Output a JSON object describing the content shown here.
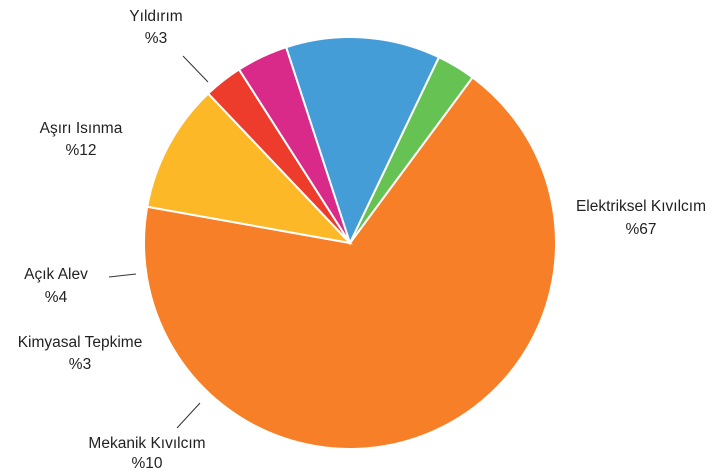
{
  "chart_data": {
    "type": "pie",
    "title": "",
    "slices": [
      {
        "label": "Elektriksel Kıvılcım",
        "value_label": "%67",
        "value": 67,
        "color": "#f77f27"
      },
      {
        "label": "Mekanik Kıvılcım",
        "value_label": "%10",
        "value": 10,
        "color": "#fcb827"
      },
      {
        "label": "Kimyasal Tepkime",
        "value_label": "%3",
        "value": 3,
        "color": "#ee3c2c"
      },
      {
        "label": "Açık Alev",
        "value_label": "%4",
        "value": 4,
        "color": "#d92a8a"
      },
      {
        "label": "Aşırı Isınma",
        "value_label": "%12",
        "value": 12,
        "color": "#459dd8"
      },
      {
        "label": "Yıldırım",
        "value_label": "%3",
        "value": 3,
        "color": "#65c253"
      }
    ]
  }
}
